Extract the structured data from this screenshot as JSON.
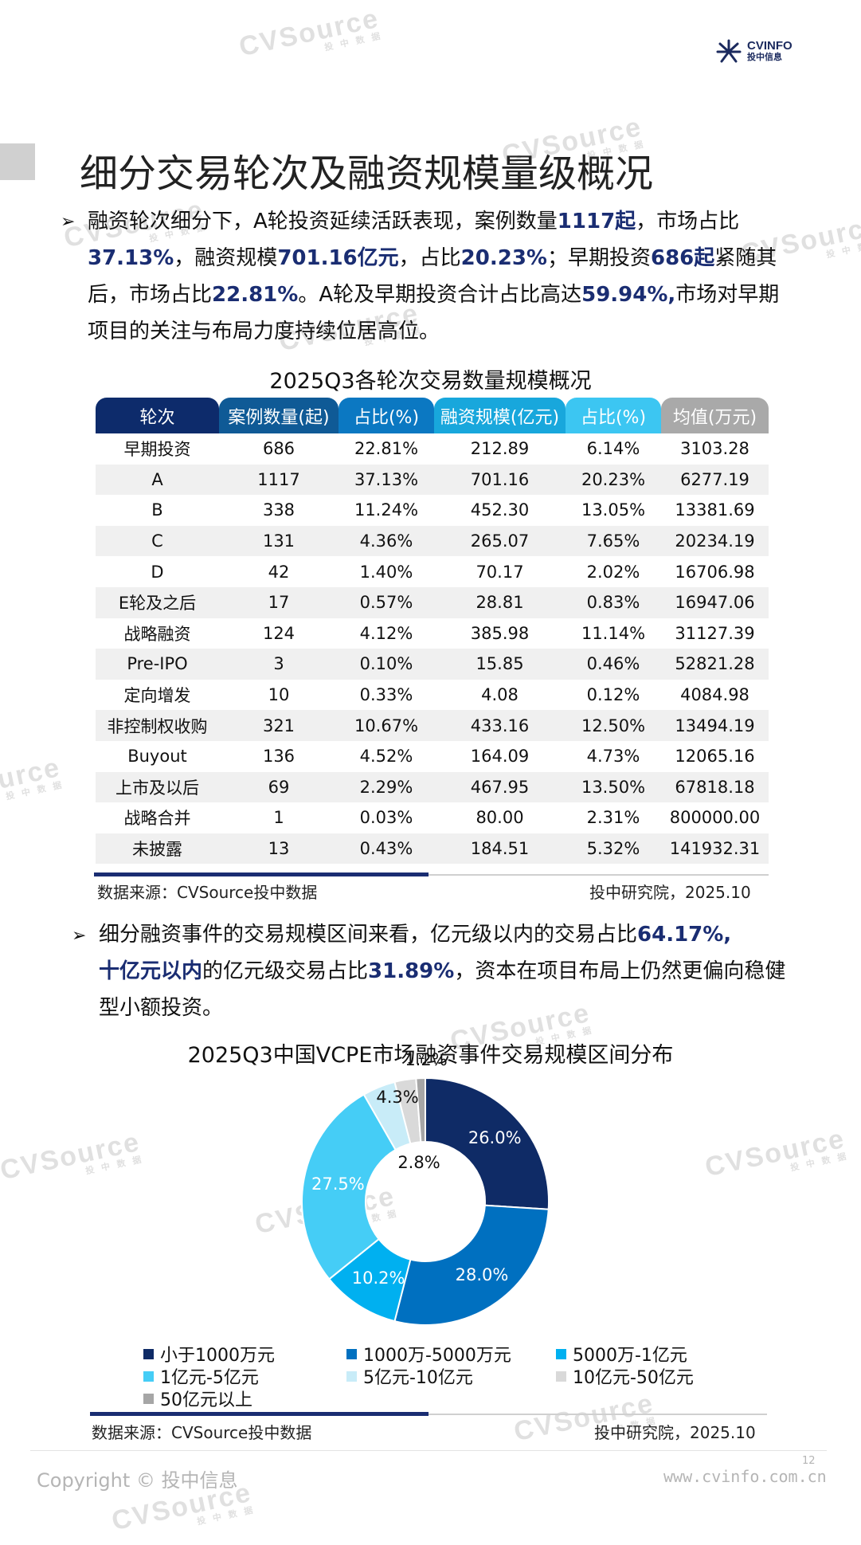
{
  "logo": {
    "brand": "CVINFO",
    "cn": "投中信息"
  },
  "watermark": {
    "brand": "CVSource",
    "cn": "投 中 数 据"
  },
  "title": "细分交易轮次及融资规模量级概况",
  "bullet_marker": "➢",
  "para1": {
    "s1": "融资轮次细分下，A轮投资延续活跃表现，案例数量",
    "b1": "1117起",
    "s2": "，市场占比",
    "b2": "37.13%",
    "s3": "，融资规模",
    "b3": "701.16亿元",
    "s4": "，占比",
    "b4": "20.23%",
    "s5": "；早期投资",
    "b5": "686起",
    "s6": "紧随其后，市场占比",
    "b6": "22.81%",
    "s7": "。A轮及早期投资合计占比高达",
    "b7": "59.94%,",
    "s8": "市场对早期项目的关注与布局力度持续位居高位。"
  },
  "table": {
    "caption": "2025Q3各轮次交易数量规模概况",
    "header_colors": [
      "#0d2b6b",
      "#0f5a96",
      "#0b78c2",
      "#18a7dc",
      "#3cc6f2",
      "#a9a9a9"
    ],
    "headers": [
      "轮次",
      "案例数量(起)",
      "占比(%)",
      "融资规模(亿元)",
      "占比(%)",
      "均值(万元)"
    ],
    "rows": [
      [
        "早期投资",
        "686",
        "22.81%",
        "212.89",
        "6.14%",
        "3103.28"
      ],
      [
        "A",
        "1117",
        "37.13%",
        "701.16",
        "20.23%",
        "6277.19"
      ],
      [
        "B",
        "338",
        "11.24%",
        "452.30",
        "13.05%",
        "13381.69"
      ],
      [
        "C",
        "131",
        "4.36%",
        "265.07",
        "7.65%",
        "20234.19"
      ],
      [
        "D",
        "42",
        "1.40%",
        "70.17",
        "2.02%",
        "16706.98"
      ],
      [
        "E轮及之后",
        "17",
        "0.57%",
        "28.81",
        "0.83%",
        "16947.06"
      ],
      [
        "战略融资",
        "124",
        "4.12%",
        "385.98",
        "11.14%",
        "31127.39"
      ],
      [
        "Pre-IPO",
        "3",
        "0.10%",
        "15.85",
        "0.46%",
        "52821.28"
      ],
      [
        "定向增发",
        "10",
        "0.33%",
        "4.08",
        "0.12%",
        "4084.98"
      ],
      [
        "非控制权收购",
        "321",
        "10.67%",
        "433.16",
        "12.50%",
        "13494.19"
      ],
      [
        "Buyout",
        "136",
        "4.52%",
        "164.09",
        "4.73%",
        "12065.16"
      ],
      [
        "上市及以后",
        "69",
        "2.29%",
        "467.95",
        "13.50%",
        "67818.18"
      ],
      [
        "战略合并",
        "1",
        "0.03%",
        "80.00",
        "2.31%",
        "800000.00"
      ],
      [
        "未披露",
        "13",
        "0.43%",
        "184.51",
        "5.32%",
        "141932.31"
      ]
    ],
    "source": "数据来源：CVSource投中数据",
    "org": "投中研究院，2025.10"
  },
  "para2": {
    "s1": "细分融资事件的交易规模区间来看，亿元级以内的交易占比",
    "b1": "64.17%,",
    "b2": "十亿元以内",
    "s2": "的亿元级交易占比",
    "b3": "31.89%",
    "s3": "，资本在项目布局上仍然更偏向稳健型小额投资。"
  },
  "chart_data": {
    "type": "pie",
    "donut": true,
    "title": "2025Q3中国VCPE市场融资事件交易规模区间分布",
    "categories": [
      "小于1000万元",
      "1000万-5000万元",
      "5000万-1亿元",
      "1亿元-5亿元",
      "5亿元-10亿元",
      "10亿元-50亿元",
      "50亿元以上"
    ],
    "values": [
      26.0,
      28.0,
      10.2,
      27.5,
      4.3,
      2.8,
      1.2
    ],
    "labels": [
      "26.0%",
      "28.0%",
      "10.2%",
      "27.5%",
      "4.3%",
      "2.8%",
      "1.2%"
    ],
    "colors": [
      "#0f2b66",
      "#0070c0",
      "#00b0f0",
      "#45cdf6",
      "#c8ecf8",
      "#d9d9d9",
      "#a6a6a6"
    ],
    "legend_position": "bottom"
  },
  "chart_source": "数据来源：CVSource投中数据",
  "chart_org": "投中研究院，2025.10",
  "footer": {
    "copyright": "Copyright © 投中信息",
    "url": "www.cvinfo.com.cn",
    "page": "12"
  }
}
